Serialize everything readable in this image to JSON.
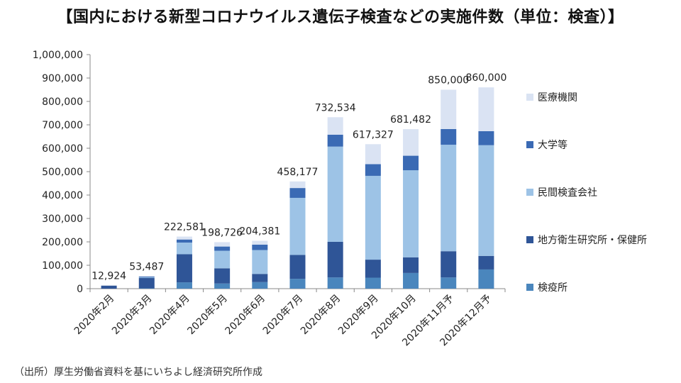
{
  "chart_data": {
    "type": "bar",
    "stacked": true,
    "title": "【国内における新型コロナウイルス遺伝子検査などの実施件数（単位：検査）】",
    "categories": [
      "2020年2月",
      "2020年3月",
      "2020年4月",
      "2020年5月",
      "2020年6月",
      "2020年7月",
      "2020年8月",
      "2020年9月",
      "2020年10月",
      "2020年11月予",
      "2020年12月予"
    ],
    "totals": [
      12924,
      53487,
      222581,
      198726,
      204381,
      458177,
      732534,
      617327,
      681482,
      850000,
      860000
    ],
    "total_labels": [
      "12,924",
      "53,487",
      "222,581",
      "198,726",
      "204,381",
      "458,177",
      "732,534",
      "617,327",
      "681,482",
      "850,000",
      "860,000"
    ],
    "ylim": [
      0,
      1000000
    ],
    "yticks": [
      0,
      100000,
      200000,
      300000,
      400000,
      500000,
      600000,
      700000,
      800000,
      900000,
      1000000
    ],
    "ytick_labels": [
      "0",
      "100,000",
      "200,000",
      "300,000",
      "400,000",
      "500,000",
      "600,000",
      "700,000",
      "800,000",
      "900,000",
      "1,000,000"
    ],
    "series": [
      {
        "name": "検疫所",
        "color": "#4a86bd",
        "values": [
          0,
          1500,
          27000,
          22000,
          28000,
          42000,
          48000,
          47000,
          67000,
          48000,
          82000
        ]
      },
      {
        "name": "地方衛生研究所・保健所",
        "color": "#2f5597",
        "values": [
          12924,
          44000,
          120000,
          65000,
          35000,
          102000,
          152000,
          77000,
          67000,
          112000,
          58000
        ]
      },
      {
        "name": "民間検査会社",
        "color": "#9dc3e6",
        "values": [
          0,
          3000,
          50000,
          75000,
          102000,
          244000,
          407000,
          358000,
          372000,
          455000,
          473000
        ]
      },
      {
        "name": "大学等",
        "color": "#3a6ab4",
        "values": [
          0,
          3000,
          13000,
          18000,
          23000,
          42000,
          51000,
          50000,
          62000,
          67000,
          60000
        ]
      },
      {
        "name": "医療機関",
        "color": "#dae3f3",
        "values": [
          0,
          1987,
          12581,
          18726,
          16381,
          28177,
          74534,
          85327,
          113482,
          168000,
          187000
        ]
      }
    ],
    "legend_order": [
      "医療機関",
      "大学等",
      "民間検査会社",
      "地方衛生研究所・保健所",
      "検疫所"
    ],
    "legend": "right",
    "grid": false
  },
  "source": "（出所）厚生労働省資料を基にいちよし経済研究所作成"
}
